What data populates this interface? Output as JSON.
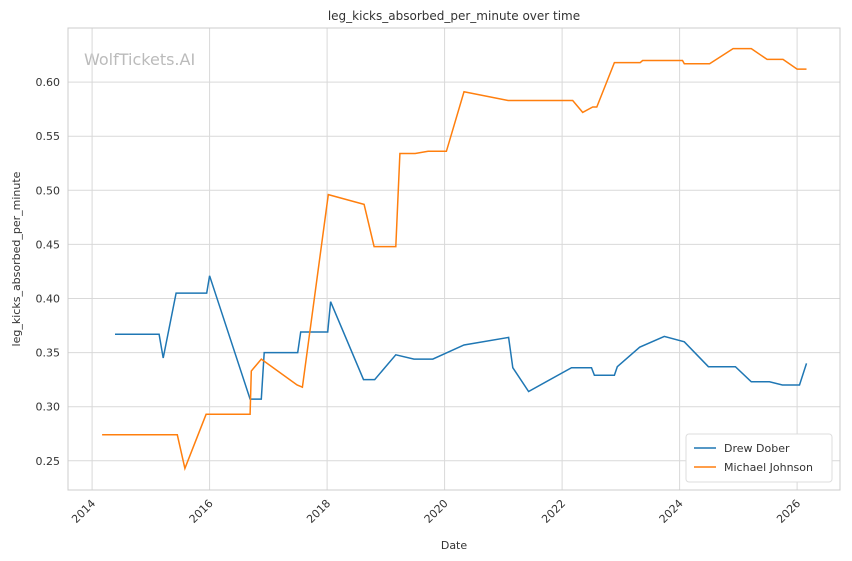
{
  "chart_data": {
    "type": "line",
    "title": "leg_kicks_absorbed_per_minute over time",
    "watermark": "WolfTickets.AI",
    "xlabel": "Date",
    "ylabel": "leg_kicks_absorbed_per_minute",
    "xlim": [
      2013.59,
      2026.73
    ],
    "xticks": [
      2014,
      2016,
      2018,
      2020,
      2022,
      2024,
      2026
    ],
    "ylim": [
      0.223,
      0.65
    ],
    "yticks": [
      0.25,
      {
        "value": 0.3,
        "label": "0.30"
      },
      0.35,
      {
        "value": 0.4,
        "label": "0.40"
      },
      0.45,
      {
        "value": 0.5,
        "label": "0.50"
      },
      0.55,
      {
        "value": 0.6,
        "label": "0.60"
      }
    ],
    "grid": true,
    "legend": "lower right",
    "series": [
      {
        "name": "Drew Dober",
        "color": "#1f77b4",
        "x": [
          2014.39,
          2015.14,
          2015.21,
          2015.43,
          2015.95,
          2016.0,
          2016.69,
          2016.88,
          2016.93,
          2017.5,
          2017.55,
          2018.01,
          2018.06,
          2018.62,
          2018.81,
          2019.17,
          2019.48,
          2019.8,
          2020.33,
          2021.09,
          2021.16,
          2021.43,
          2022.16,
          2022.5,
          2022.55,
          2022.89,
          2022.94,
          2023.32,
          2023.74,
          2024.08,
          2024.49,
          2024.95,
          2025.22,
          2025.53,
          2025.75,
          2026.04,
          2026.16
        ],
        "values": [
          0.367,
          0.367,
          0.345,
          0.405,
          0.405,
          0.421,
          0.307,
          0.307,
          0.35,
          0.35,
          0.369,
          0.369,
          0.397,
          0.325,
          0.325,
          0.348,
          0.344,
          0.344,
          0.357,
          0.364,
          0.336,
          0.314,
          0.336,
          0.336,
          0.329,
          0.329,
          0.337,
          0.355,
          0.365,
          0.36,
          0.337,
          0.337,
          0.323,
          0.323,
          0.32,
          0.32,
          0.34
        ]
      },
      {
        "name": "Michael Johnson",
        "color": "#ff7f0e",
        "x": [
          2014.17,
          2015.45,
          2015.58,
          2015.94,
          2016.69,
          2016.71,
          2016.88,
          2017.49,
          2017.58,
          2018.02,
          2018.63,
          2018.8,
          2019.17,
          2019.24,
          2019.5,
          2019.72,
          2020.03,
          2020.33,
          2021.08,
          2022.18,
          2022.35,
          2022.52,
          2022.59,
          2022.89,
          2023.33,
          2023.37,
          2024.05,
          2024.08,
          2024.51,
          2024.91,
          2025.22,
          2025.49,
          2025.76,
          2026.0,
          2026.16
        ],
        "values": [
          0.274,
          0.274,
          0.243,
          0.293,
          0.293,
          0.333,
          0.344,
          0.32,
          0.318,
          0.496,
          0.487,
          0.448,
          0.448,
          0.534,
          0.534,
          0.536,
          0.536,
          0.591,
          0.583,
          0.583,
          0.572,
          0.577,
          0.577,
          0.618,
          0.618,
          0.62,
          0.62,
          0.617,
          0.617,
          0.631,
          0.631,
          0.621,
          0.621,
          0.612,
          0.612
        ]
      }
    ]
  }
}
